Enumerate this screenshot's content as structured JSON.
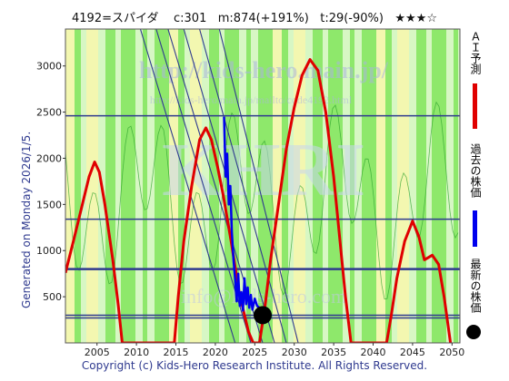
{
  "header": {
    "code": "4192=スパイダ",
    "current": "c:301",
    "max": "m:874(+191%)",
    "min": "t:29(-90%)",
    "stars": "★★★☆"
  },
  "side_label": "Generated on Monday 2026/1/5.",
  "copyright": "Copyright (c) Kids-Hero Research Institute. All Rights Reserved.",
  "watermarks": {
    "big": "http://kids-hero.main.jp/",
    "small": "http://kids-hero.main.jp/mailto/code4192.html",
    "email": "info@kids-hero.com",
    "logo": "KHRI"
  },
  "legend": [
    {
      "label": "ＡＩ予測",
      "color": "#e00000"
    },
    {
      "label": "過去の株価",
      "color": "#0000ee"
    },
    {
      "label": "最新の株価",
      "color": "#000000"
    }
  ],
  "colors": {
    "green_band": "#8ee86b",
    "yellow_band": "#f3f7b0",
    "light_band": "#d7f7c4",
    "ai_line": "#e00000",
    "past_line": "#0000ee",
    "trend_line": "#2f3a8f"
  },
  "chart_data": {
    "type": "line",
    "xlim": [
      2001,
      2051
    ],
    "ylim": [
      0,
      3400
    ],
    "x_ticks": [
      2005,
      2010,
      2015,
      2020,
      2025,
      2030,
      2035,
      2040,
      2045,
      2050
    ],
    "y_ticks": [
      500,
      1000,
      1500,
      2000,
      2500,
      3000
    ],
    "horizontal_lines": [
      2460,
      1340,
      800,
      300,
      270
    ],
    "series": [
      {
        "name": "ＡＩ予測",
        "points": [
          [
            2001,
            760
          ],
          [
            2002,
            1100
          ],
          [
            2003,
            1450
          ],
          [
            2004,
            1800
          ],
          [
            2004.7,
            1960
          ],
          [
            2005.3,
            1850
          ],
          [
            2006,
            1500
          ],
          [
            2007,
            900
          ],
          [
            2007.7,
            400
          ],
          [
            2008.2,
            0
          ],
          [
            2014.8,
            0
          ],
          [
            2015.3,
            500
          ],
          [
            2016,
            1100
          ],
          [
            2017,
            1700
          ],
          [
            2018,
            2200
          ],
          [
            2018.8,
            2330
          ],
          [
            2019.5,
            2200
          ],
          [
            2020.3,
            1900
          ],
          [
            2021,
            1600
          ],
          [
            2022,
            1100
          ],
          [
            2023,
            550
          ],
          [
            2024.2,
            120
          ],
          [
            2024.8,
            0
          ],
          [
            2025.6,
            0
          ],
          [
            2026.3,
            400
          ],
          [
            2027,
            900
          ],
          [
            2028,
            1500
          ],
          [
            2029,
            2100
          ],
          [
            2030,
            2550
          ],
          [
            2031,
            2900
          ],
          [
            2032,
            3070
          ],
          [
            2033,
            2950
          ],
          [
            2034,
            2500
          ],
          [
            2035,
            1800
          ],
          [
            2035.8,
            1100
          ],
          [
            2036.5,
            500
          ],
          [
            2037.2,
            0
          ],
          [
            2041.7,
            0
          ],
          [
            2042.3,
            300
          ],
          [
            2043,
            700
          ],
          [
            2044,
            1100
          ],
          [
            2045,
            1320
          ],
          [
            2045.8,
            1150
          ],
          [
            2046.5,
            900
          ],
          [
            2047.5,
            950
          ],
          [
            2048.3,
            850
          ],
          [
            2049,
            500
          ],
          [
            2049.8,
            0
          ]
        ]
      },
      {
        "name": "過去の株価",
        "points": [
          [
            2021.1,
            2450
          ],
          [
            2021.3,
            1800
          ],
          [
            2021.5,
            2050
          ],
          [
            2021.7,
            1500
          ],
          [
            2021.9,
            1700
          ],
          [
            2022.1,
            1200
          ],
          [
            2022.3,
            900
          ],
          [
            2022.5,
            700
          ],
          [
            2022.7,
            450
          ],
          [
            2022.9,
            750
          ],
          [
            2023.1,
            400
          ],
          [
            2023.3,
            550
          ],
          [
            2023.5,
            350
          ],
          [
            2023.7,
            700
          ],
          [
            2023.9,
            420
          ],
          [
            2024.1,
            600
          ],
          [
            2024.3,
            380
          ],
          [
            2024.5,
            520
          ],
          [
            2024.7,
            360
          ],
          [
            2025.0,
            480
          ],
          [
            2025.3,
            400
          ],
          [
            2025.6,
            380
          ],
          [
            2025.9,
            330
          ],
          [
            2026.0,
            301
          ]
        ]
      }
    ],
    "latest_point": {
      "x": 2026.0,
      "y": 301
    }
  }
}
